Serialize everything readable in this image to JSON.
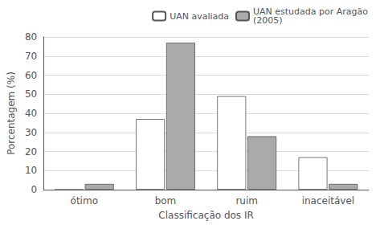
{
  "chart_data": {
    "type": "bar",
    "xlabel": "Classificação dos IR",
    "ylabel": "Porcentagem (%)",
    "categories": [
      "ótimo",
      "bom",
      "ruim",
      "inaceitável"
    ],
    "series": [
      {
        "name": "UAN avaliada",
        "color": "#ffffff",
        "values": [
          0,
          37,
          49,
          17
        ]
      },
      {
        "name": "UAN estudada por Aragão\n(2005)",
        "color": "#aaaaaa",
        "values": [
          3,
          77,
          28,
          3
        ]
      }
    ],
    "ylim": [
      0,
      80
    ],
    "yticks": [
      0,
      10,
      20,
      30,
      40,
      50,
      60,
      70,
      80
    ],
    "grid": true,
    "legend": "upper right"
  }
}
